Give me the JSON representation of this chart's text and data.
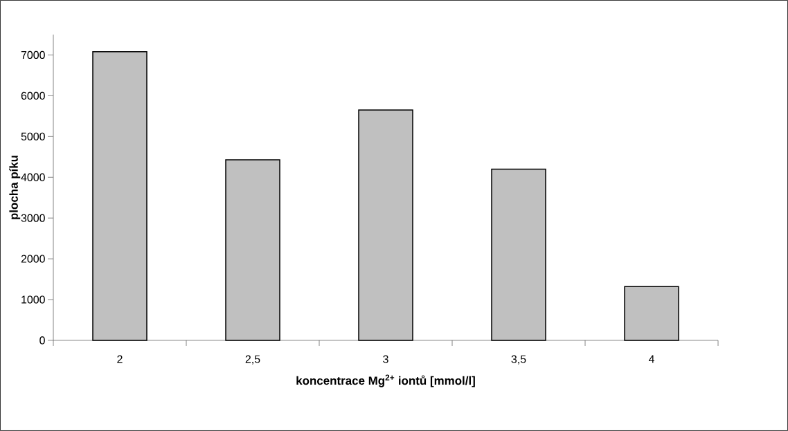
{
  "chart_data": {
    "type": "bar",
    "xlabel": "koncentrace Mg$^{2+}$ iontů [mmol/l]",
    "ylabel": "plocha píku",
    "categories": [
      "2",
      "2,5",
      "3",
      "3,5",
      "4"
    ],
    "values": [
      7080,
      4430,
      5650,
      4200,
      1320
    ],
    "color": "#c0c0c0",
    "ylim": [
      0,
      7500
    ],
    "yticks": [
      0,
      1000,
      2000,
      3000,
      4000,
      5000,
      6000,
      7000
    ]
  }
}
